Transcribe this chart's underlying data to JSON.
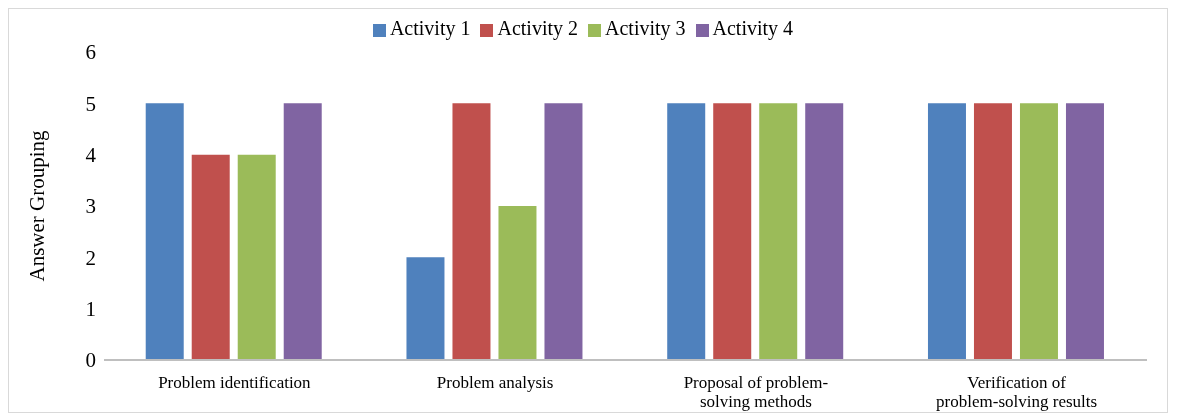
{
  "chart_data": {
    "type": "bar",
    "ylabel": "Answer Grouping",
    "categories": [
      "Problem identification",
      "Problem analysis",
      "Proposal of problem-solving methods",
      "Verification of problem-solving results"
    ],
    "series": [
      {
        "name": "Activity 1",
        "color": "#4f81bd",
        "values": [
          5,
          2,
          5,
          5
        ]
      },
      {
        "name": "Activity 2",
        "color": "#c0504d",
        "values": [
          4,
          5,
          5,
          5
        ]
      },
      {
        "name": "Activity 3",
        "color": "#9bbb59",
        "values": [
          4,
          3,
          5,
          5
        ]
      },
      {
        "name": "Activity 4",
        "color": "#8064a2",
        "values": [
          5,
          5,
          5,
          5
        ]
      }
    ],
    "ylim": [
      0,
      6
    ],
    "yticks": [
      0,
      1,
      2,
      3,
      4,
      5,
      6
    ],
    "grid": false,
    "legend": "top"
  }
}
